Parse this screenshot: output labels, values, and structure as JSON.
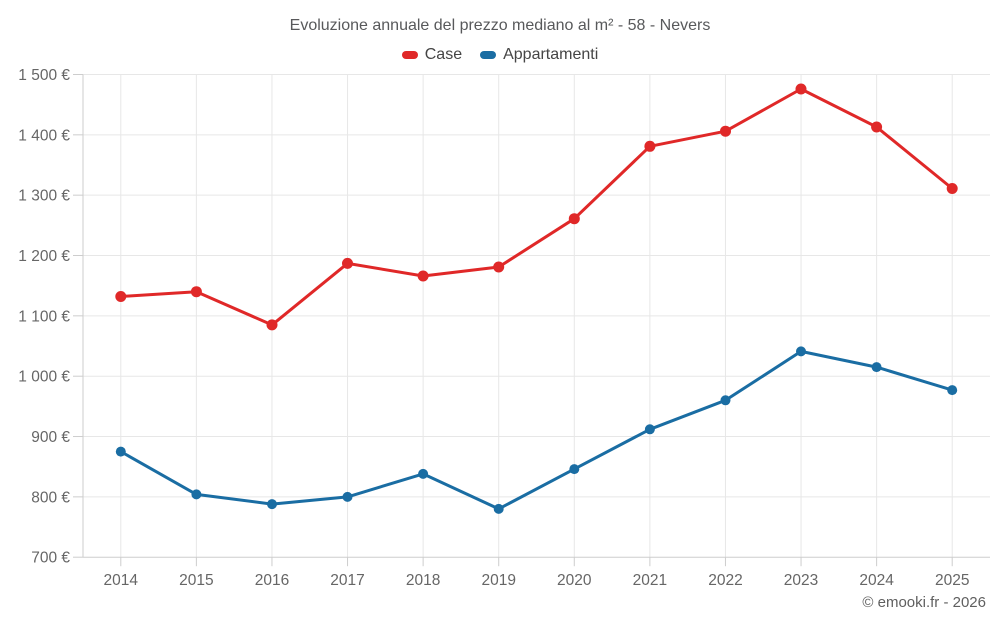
{
  "title": "Evoluzione annuale del prezzo mediano al m² - 58 - Nevers",
  "legend": [
    {
      "label": "Case",
      "color": "#e02828"
    },
    {
      "label": "Appartamenti",
      "color": "#1a6da3"
    }
  ],
  "footer": {
    "copyright": "© emooki.fr - 2026"
  },
  "chart_data": {
    "type": "line",
    "title": "Evoluzione annuale del prezzo mediano al m² - 58 - Nevers",
    "categories": [
      "2014",
      "2015",
      "2016",
      "2017",
      "2018",
      "2019",
      "2020",
      "2021",
      "2022",
      "2023",
      "2024",
      "2025"
    ],
    "series": [
      {
        "name": "Case",
        "color": "#e02828",
        "marker_radius": 5.5,
        "values": [
          1132,
          1140,
          1085,
          1187,
          1166,
          1181,
          1261,
          1381,
          1406,
          1476,
          1413,
          1311
        ]
      },
      {
        "name": "Appartamenti",
        "color": "#1a6da3",
        "marker_radius": 5,
        "values": [
          875,
          804,
          788,
          800,
          838,
          780,
          846,
          912,
          960,
          1041,
          1015,
          977
        ]
      }
    ],
    "xlabel": "",
    "ylabel": "",
    "ylim": [
      700,
      1500
    ],
    "ytick_step": 100,
    "ytick_suffix": " €",
    "grid": true,
    "legend_position": "top"
  }
}
